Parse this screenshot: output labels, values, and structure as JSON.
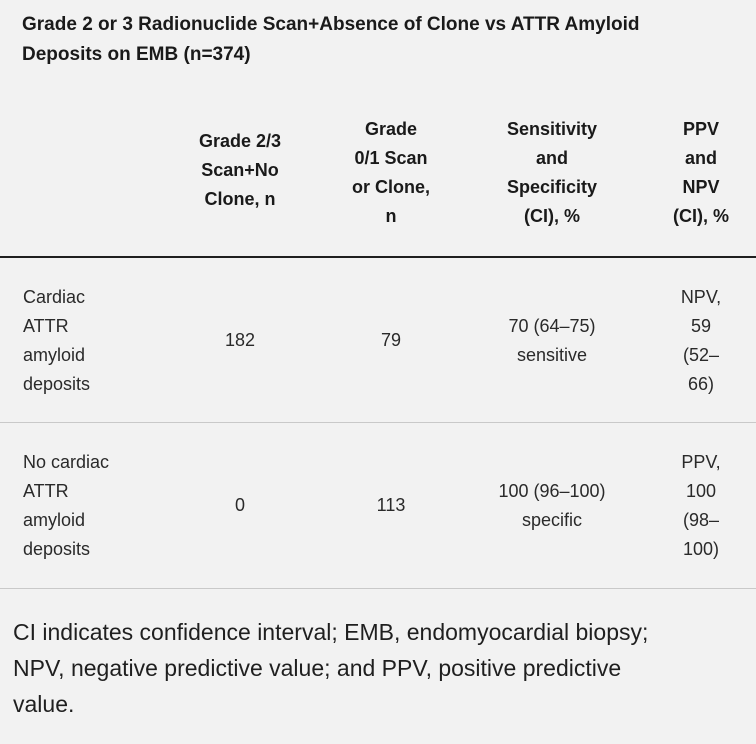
{
  "title": {
    "line1": "Grade 2 or 3 Radionuclide Scan+Absence of Clone vs ATTR Amyloid",
    "line2": "Deposits on EMB (n=374)"
  },
  "columns": [
    {
      "lines": [
        "Grade 2/3",
        "Scan+No",
        "Clone, n"
      ]
    },
    {
      "lines": [
        "Grade",
        "0/1 Scan",
        "or Clone,",
        "n"
      ]
    },
    {
      "lines": [
        "Sensitivity",
        "and",
        "Specificity",
        "(CI), %"
      ]
    },
    {
      "lines": [
        "PPV",
        "and",
        "NPV",
        "(CI), %"
      ]
    }
  ],
  "rows": [
    {
      "label_lines": [
        "Cardiac",
        "ATTR",
        "amyloid",
        "deposits"
      ],
      "grade23": "182",
      "grade01": "79",
      "sens_lines": [
        "70 (64–75)",
        "sensitive"
      ],
      "ppv_lines": [
        "NPV,",
        "59",
        "(52–",
        "66)"
      ]
    },
    {
      "label_lines": [
        "No cardiac",
        "ATTR",
        "amyloid",
        "deposits"
      ],
      "grade23": "0",
      "grade01": "113",
      "sens_lines": [
        "100 (96–100)",
        "specific"
      ],
      "ppv_lines": [
        "PPV,",
        "100",
        "(98–",
        "100)"
      ]
    }
  ],
  "footnote": {
    "line1": "CI indicates confidence interval; EMB, endomyocardial biopsy;",
    "line2": "NPV, negative predictive value; and PPV, positive predictive",
    "line3": "value."
  }
}
